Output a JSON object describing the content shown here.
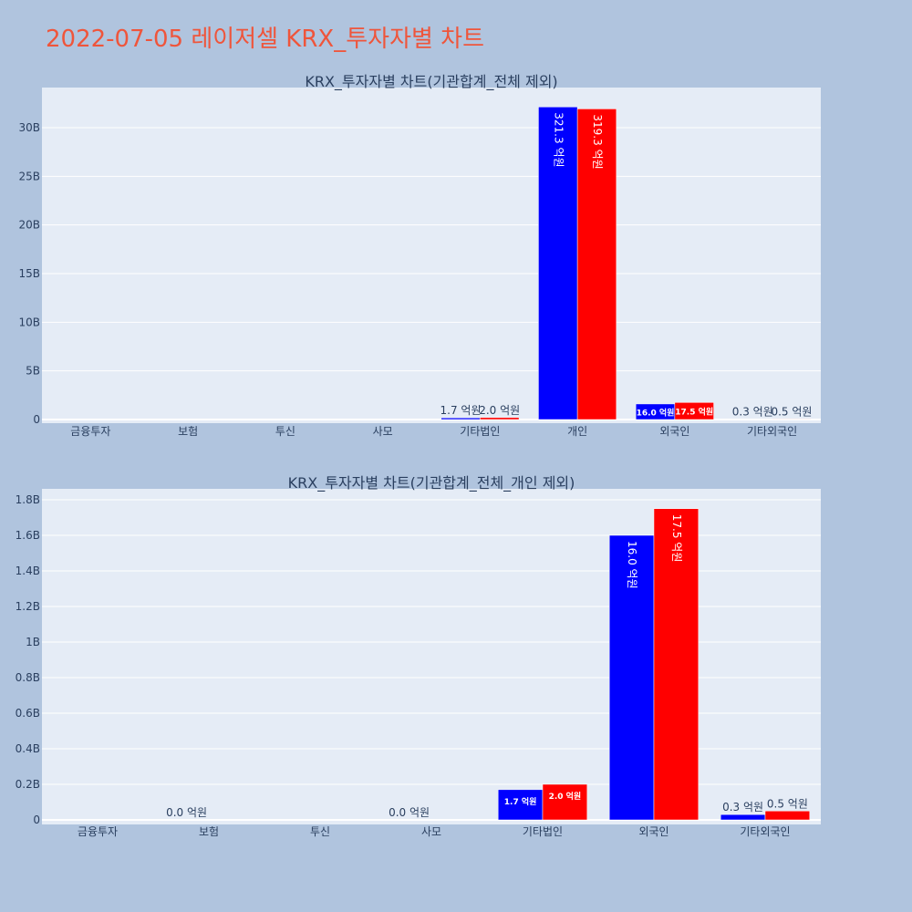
{
  "page": {
    "title": "2022-07-05 레이저셀 KRX_투자자별 차트",
    "title_color": "#ef553b",
    "background": "#b0c4de",
    "plot_background": "#e5ecf6"
  },
  "chart_data": [
    {
      "type": "bar",
      "title": "KRX_투자자별 차트(기관합계_전체 제외)",
      "categories": [
        "금융투자",
        "보험",
        "투신",
        "사모",
        "기타법인",
        "개인",
        "외국인",
        "기타외국인"
      ],
      "series": [
        {
          "color": "#0000ff",
          "values": [
            0,
            0,
            0,
            0,
            170000000,
            32130000000,
            1600000000,
            30000000
          ],
          "labels": [
            "",
            "",
            "",
            "",
            "1.7 억원",
            "321.3 억원",
            "16.0 억원",
            "0.3 억원"
          ]
        },
        {
          "color": "#ff0000",
          "values": [
            0,
            0,
            0,
            0,
            200000000,
            31930000000,
            1750000000,
            50000000
          ],
          "labels": [
            "",
            "",
            "",
            "",
            "2.0 억원",
            "319.3 억원",
            "17.5 억원",
            "0.5 억원"
          ]
        }
      ],
      "yticks": [
        "0",
        "5B",
        "10B",
        "15B",
        "20B",
        "25B",
        "30B"
      ],
      "ytick_values": [
        0,
        5000000000,
        10000000000,
        15000000000,
        20000000000,
        25000000000,
        30000000000
      ],
      "ylim": [
        0,
        34000000000
      ],
      "grid": true
    },
    {
      "type": "bar",
      "title": "KRX_투자자별 차트(기관합계_전체_개인 제외)",
      "categories": [
        "금융투자",
        "보험",
        "투신",
        "사모",
        "기타법인",
        "외국인",
        "기타외국인"
      ],
      "series": [
        {
          "color": "#0000ff",
          "values": [
            0,
            0,
            0,
            0,
            170000000,
            1600000000,
            30000000
          ],
          "labels": [
            "",
            "0.0 억원",
            "",
            "0.0 억원",
            "1.7 억원",
            "16.0 억원",
            "0.3 억원"
          ]
        },
        {
          "color": "#ff0000",
          "values": [
            0,
            0,
            0,
            0,
            200000000,
            1750000000,
            50000000
          ],
          "labels": [
            "",
            "",
            "",
            "",
            "2.0 억원",
            "17.5 억원",
            "0.5 억원"
          ]
        }
      ],
      "yticks": [
        "0",
        "0.2B",
        "0.4B",
        "0.6B",
        "0.8B",
        "1B",
        "1.2B",
        "1.4B",
        "1.6B",
        "1.8B"
      ],
      "ytick_values": [
        0,
        200000000,
        400000000,
        600000000,
        800000000,
        1000000000,
        1200000000,
        1400000000,
        1600000000,
        1800000000
      ],
      "ylim": [
        0,
        1800000000
      ],
      "grid": true
    }
  ]
}
